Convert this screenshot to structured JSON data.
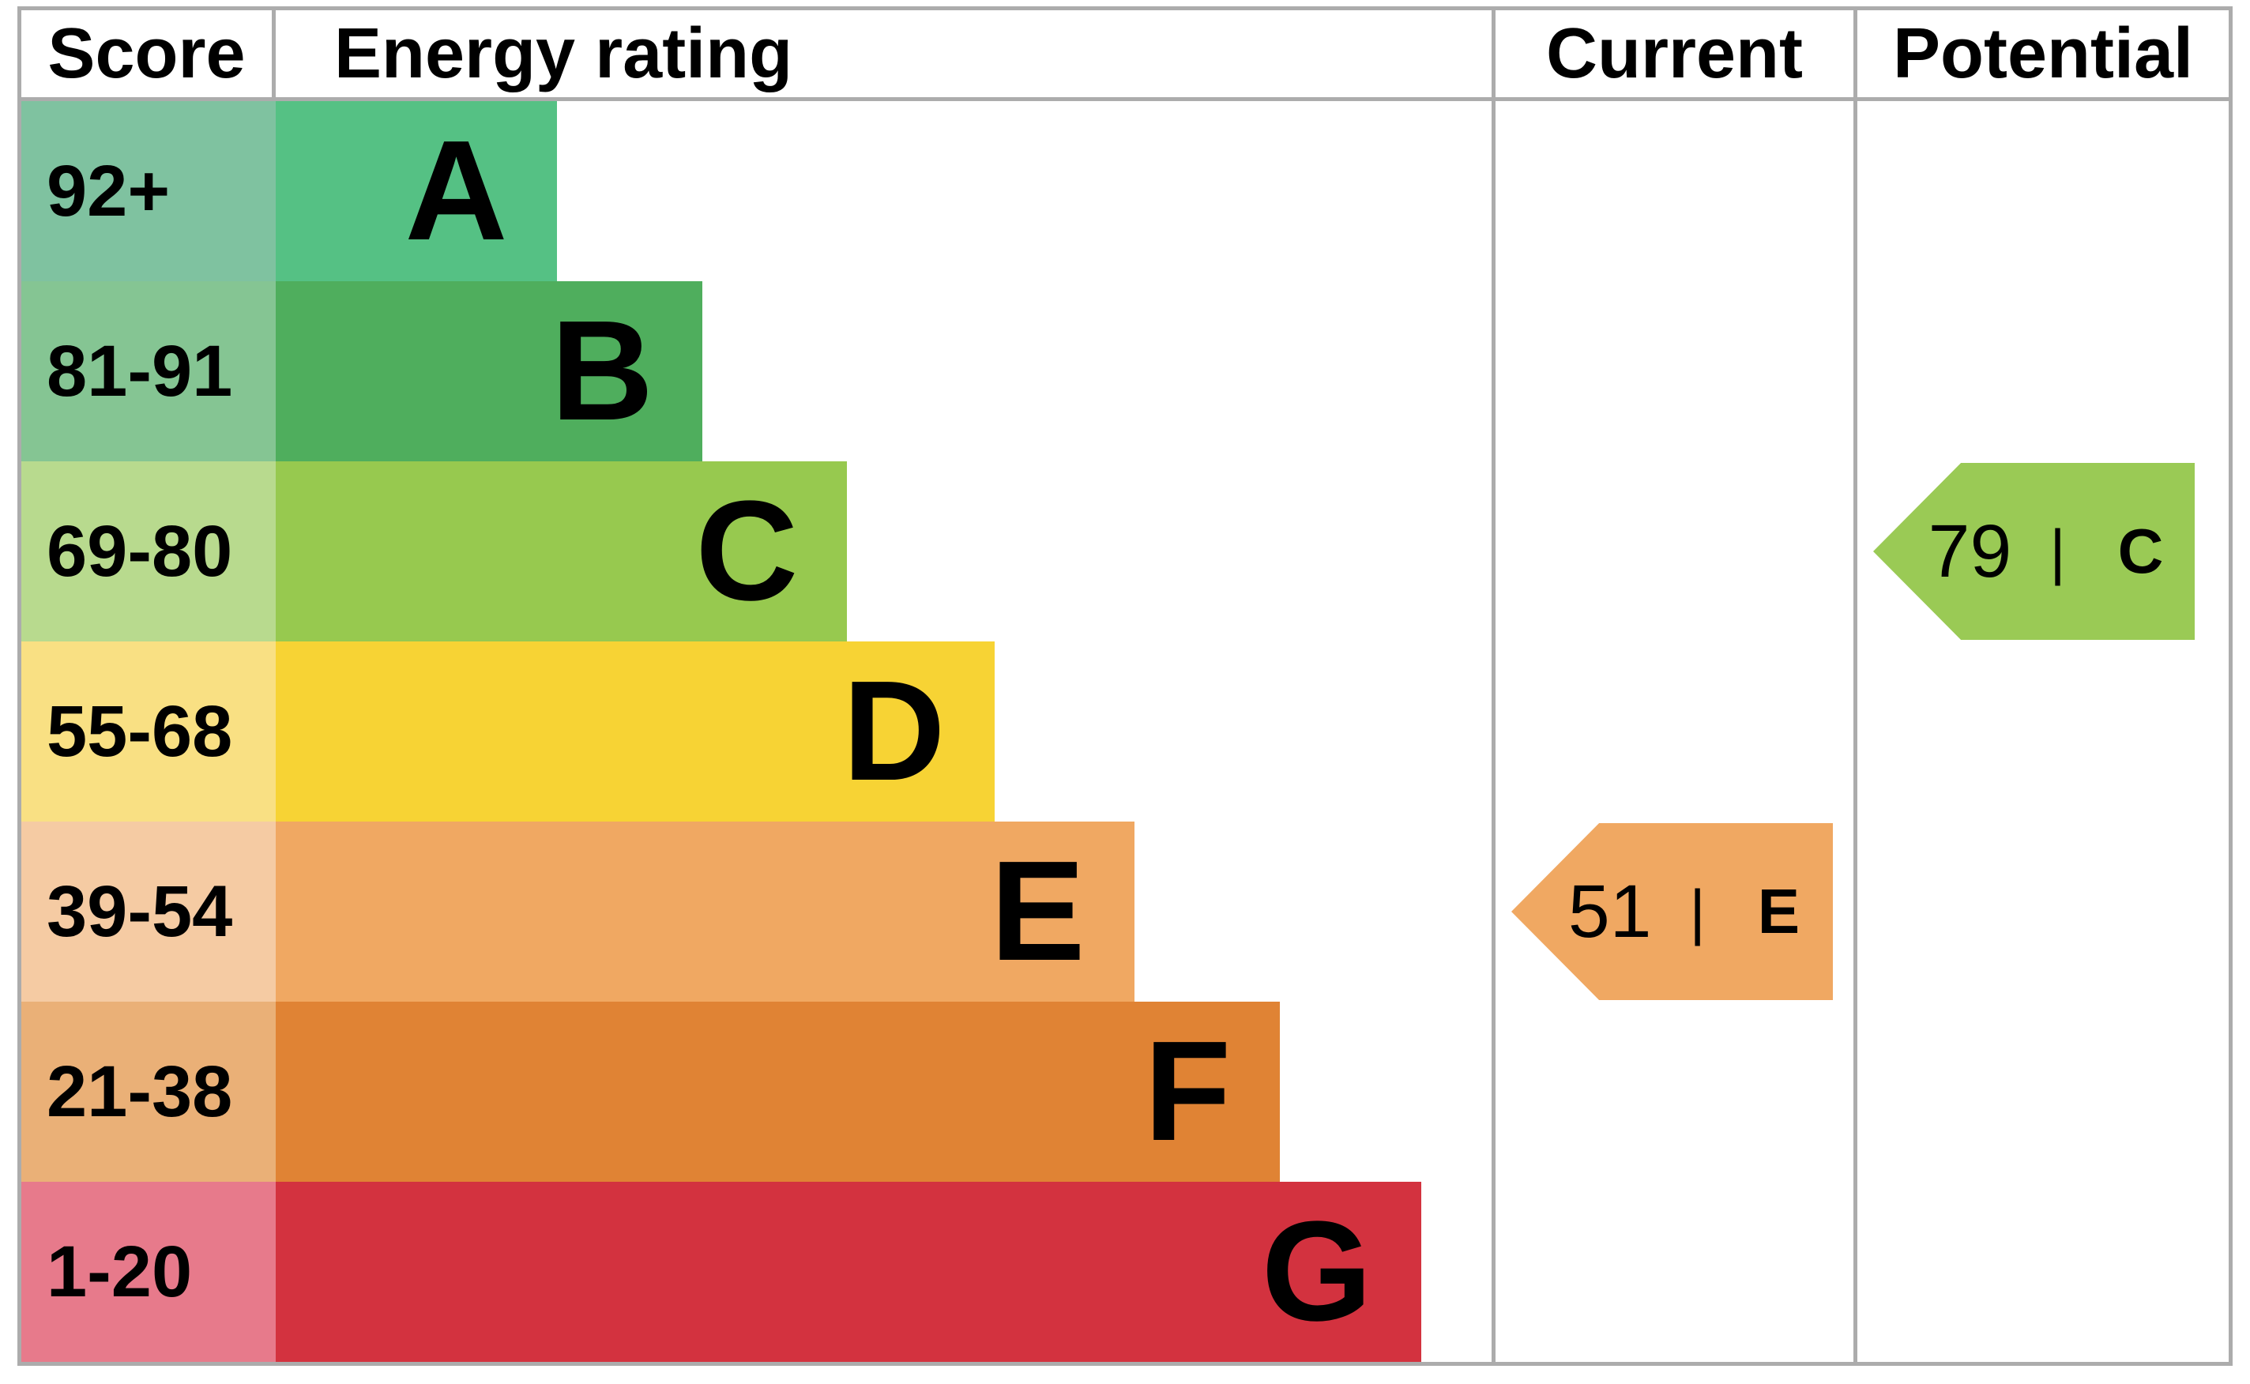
{
  "table": {
    "headers": {
      "score": "Score",
      "energy_rating": "Energy rating",
      "current": "Current",
      "potential": "Potential"
    },
    "border_color": "#acacac"
  },
  "chart_data": {
    "type": "bar",
    "title": "EPC energy efficiency rating chart",
    "bands": [
      {
        "letter": "A",
        "score_range": "92+",
        "bar_pct": 23.1,
        "bar_color": "#55c184",
        "score_bg": "#7fc2a0"
      },
      {
        "letter": "B",
        "score_range": "81-91",
        "bar_pct": 35.1,
        "bar_color": "#4fae5d",
        "score_bg": "#85c593"
      },
      {
        "letter": "C",
        "score_range": "69-80",
        "bar_pct": 47.0,
        "bar_color": "#97c94f",
        "score_bg": "#b8da8e"
      },
      {
        "letter": "D",
        "score_range": "55-68",
        "bar_pct": 59.1,
        "bar_color": "#f7d334",
        "score_bg": "#f9e083"
      },
      {
        "letter": "E",
        "score_range": "39-54",
        "bar_pct": 70.6,
        "bar_color": "#f0a862",
        "score_bg": "#f5cba3"
      },
      {
        "letter": "F",
        "score_range": "21-38",
        "bar_pct": 82.6,
        "bar_color": "#e08334",
        "score_bg": "#eab077"
      },
      {
        "letter": "G",
        "score_range": "1-20",
        "bar_pct": 94.2,
        "bar_color": "#d3323f",
        "score_bg": "#e77a8b"
      }
    ],
    "current": {
      "value": "51",
      "band": "E",
      "separator": "|",
      "color": "#f0a862"
    },
    "potential": {
      "value": "79",
      "band": "C",
      "separator": "|",
      "color": "#9aca55"
    }
  }
}
